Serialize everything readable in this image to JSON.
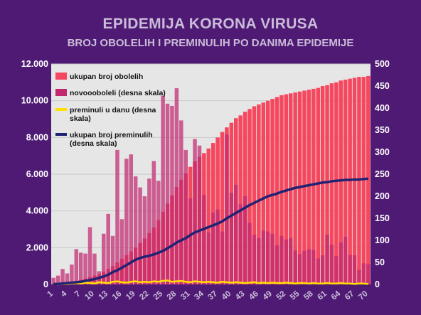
{
  "title": "EPIDEMIJA KORONA VIRUSA",
  "subtitle": "BROJ OBOLELIH I PREMINULIH PO DANIMA EPIDEMIJE",
  "colors": {
    "background": "#4f1a74",
    "plot": "#e6e6e6",
    "cumulative_cases": "#f5485f",
    "new_cases": "#c2286f",
    "daily_deaths": "#ffe100",
    "cumulative_deaths": "#202273"
  },
  "chart_data": {
    "type": "bar",
    "x": [
      1,
      2,
      3,
      4,
      5,
      6,
      7,
      8,
      9,
      10,
      11,
      12,
      13,
      14,
      15,
      16,
      17,
      18,
      19,
      20,
      21,
      22,
      23,
      24,
      25,
      26,
      27,
      28,
      29,
      30,
      31,
      32,
      33,
      34,
      35,
      36,
      37,
      38,
      39,
      40,
      41,
      42,
      43,
      44,
      45,
      46,
      47,
      48,
      49,
      50,
      51,
      52,
      53,
      54,
      55,
      56,
      57,
      58,
      59,
      60,
      61,
      62,
      63,
      64,
      65,
      66,
      67,
      68,
      69,
      70
    ],
    "x_tick_labels": [
      "1",
      "4",
      "7",
      "10",
      "13",
      "16",
      "19",
      "22",
      "25",
      "28",
      "31",
      "34",
      "37",
      "40",
      "43",
      "46",
      "49",
      "52",
      "55",
      "58",
      "61",
      "64",
      "67",
      "70"
    ],
    "y_left": {
      "ylim": [
        0,
        12000
      ],
      "ticks": [
        "0",
        "2.000",
        "4.000",
        "6.000",
        "8.000",
        "10.000",
        "12.000"
      ]
    },
    "y_right": {
      "ylim": [
        0,
        500
      ],
      "ticks": [
        "0",
        "50",
        "100",
        "150",
        "200",
        "250",
        "300",
        "350",
        "400",
        "450",
        "500"
      ]
    },
    "grid": true,
    "legend_position": "top-left",
    "series": [
      {
        "name": "ukupan broj obolelih",
        "type": "bar",
        "axis": "left",
        "values": [
          50,
          70,
          100,
          130,
          160,
          200,
          250,
          320,
          400,
          480,
          570,
          700,
          850,
          1000,
          1200,
          1400,
          1600,
          1800,
          2000,
          2250,
          2500,
          2800,
          3100,
          3500,
          3950,
          4400,
          4850,
          5300,
          5700,
          6050,
          6400,
          6700,
          6950,
          7150,
          7400,
          7700,
          8000,
          8300,
          8550,
          8800,
          9050,
          9200,
          9400,
          9550,
          9700,
          9800,
          9900,
          10000,
          10100,
          10200,
          10300,
          10350,
          10400,
          10450,
          10500,
          10550,
          10600,
          10650,
          10700,
          10800,
          10850,
          10950,
          11000,
          11100,
          11150,
          11200,
          11250,
          11300,
          11300,
          11350
        ]
      },
      {
        "name": "novoooboleli (desna skala)",
        "type": "bar",
        "axis": "right",
        "values": [
          15,
          20,
          35,
          25,
          45,
          80,
          72,
          70,
          130,
          70,
          30,
          115,
          160,
          110,
          305,
          148,
          285,
          295,
          245,
          220,
          200,
          240,
          280,
          235,
          428,
          410,
          405,
          445,
          372,
          305,
          195,
          330,
          315,
          203,
          118,
          163,
          170,
          120,
          340,
          208,
          226,
          182,
          200,
          140,
          113,
          105,
          122,
          120,
          115,
          89,
          110,
          102,
          105,
          77,
          69,
          76,
          80,
          78,
          59,
          66,
          113,
          90,
          64,
          95,
          108,
          67,
          66,
          33,
          48,
          46
        ]
      },
      {
        "name": "preminuli u danu (desna skala)",
        "type": "line",
        "axis": "right",
        "values": [
          1,
          0,
          1,
          1,
          2,
          3,
          2,
          4,
          3,
          2,
          5,
          4,
          3,
          6,
          7,
          5,
          4,
          6,
          7,
          5,
          6,
          5,
          7,
          6,
          8,
          9,
          6,
          7,
          8,
          6,
          5,
          7,
          6,
          5,
          6,
          5,
          4,
          6,
          5,
          4,
          5,
          4,
          3,
          4,
          5,
          3,
          4,
          3,
          4,
          3,
          3,
          4,
          3,
          2,
          3,
          3,
          2,
          3,
          2,
          2,
          3,
          2,
          2,
          3,
          2,
          2,
          1,
          2,
          2,
          1
        ]
      },
      {
        "name": "ukupan broj preminulih\n(desna skala)",
        "type": "line",
        "axis": "right",
        "values": [
          1,
          1,
          2,
          3,
          4,
          5,
          6,
          8,
          10,
          12,
          15,
          18,
          22,
          28,
          32,
          38,
          44,
          50,
          56,
          60,
          63,
          65,
          68,
          72,
          76,
          82,
          88,
          95,
          100,
          105,
          112,
          118,
          122,
          126,
          130,
          134,
          138,
          143,
          150,
          156,
          162,
          168,
          174,
          180,
          185,
          190,
          195,
          200,
          203,
          206,
          210,
          213,
          216,
          219,
          221,
          223,
          225,
          227,
          229,
          231,
          232,
          234,
          235,
          236,
          237,
          237,
          238,
          238,
          239,
          240
        ]
      }
    ]
  }
}
